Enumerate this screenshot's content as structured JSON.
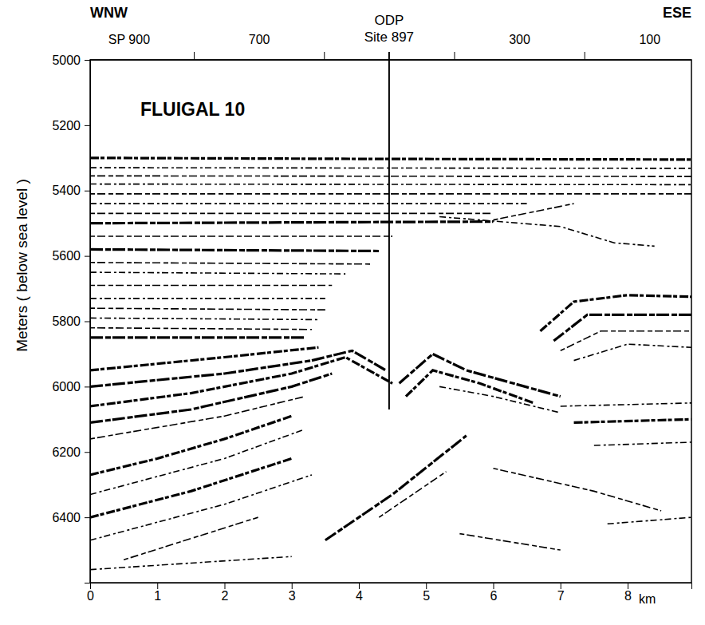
{
  "chart_data": {
    "type": "seismic_section",
    "title": "FLUIGAL 10",
    "direction_labels": [
      "WNW",
      "ESE"
    ],
    "ylabel": "Meters ( below sea level )",
    "xlabel": "km",
    "xlim": [
      0,
      8.95
    ],
    "xticks": [
      0,
      1,
      2,
      3,
      4,
      5,
      6,
      7,
      8
    ],
    "ylim": [
      5000,
      6600
    ],
    "yticks": [
      5000,
      5200,
      5400,
      5600,
      5800,
      6000,
      6200,
      6400
    ],
    "sp_lim": [
      960,
      36
    ],
    "sp_ticks": [
      800,
      600,
      400,
      200
    ],
    "sp_tick_labels": [
      {
        "value": 900,
        "label": "SP 900"
      },
      700,
      300,
      100
    ],
    "site": {
      "label": [
        "ODP",
        "Site 897"
      ],
      "x": 4.45,
      "depth": 6070
    },
    "reflectors": [
      {
        "line_style": "bold",
        "x": [
          0,
          4,
          8.95
        ],
        "y": [
          5300,
          5303,
          5305
        ]
      },
      {
        "line_style": "thin",
        "x": [
          0,
          8.95
        ],
        "y": [
          5330,
          5332
        ]
      },
      {
        "line_style": "thin",
        "x": [
          0,
          8.95
        ],
        "y": [
          5355,
          5357
        ]
      },
      {
        "line_style": "thin",
        "x": [
          0,
          8.95
        ],
        "y": [
          5380,
          5382
        ]
      },
      {
        "line_style": "thin",
        "x": [
          0,
          8.95
        ],
        "y": [
          5410,
          5410
        ]
      },
      {
        "line_style": "thin",
        "x": [
          0,
          6.5
        ],
        "y": [
          5440,
          5440
        ]
      },
      {
        "line_style": "thin",
        "x": [
          0,
          6
        ],
        "y": [
          5470,
          5470
        ]
      },
      {
        "line_style": "bold",
        "x": [
          0,
          6
        ],
        "y": [
          5500,
          5495
        ]
      },
      {
        "line_style": "thin",
        "x": [
          6,
          7.2
        ],
        "y": [
          5490,
          5440
        ]
      },
      {
        "line_style": "thin",
        "x": [
          5.2,
          7,
          7.8,
          8.4
        ],
        "y": [
          5480,
          5510,
          5560,
          5570
        ]
      },
      {
        "line_style": "thin",
        "x": [
          0,
          4.5
        ],
        "y": [
          5540,
          5540
        ]
      },
      {
        "line_style": "bold",
        "x": [
          0,
          4.3
        ],
        "y": [
          5580,
          5585
        ]
      },
      {
        "line_style": "thin",
        "x": [
          0,
          4.2
        ],
        "y": [
          5620,
          5625
        ]
      },
      {
        "line_style": "thin",
        "x": [
          0,
          3.8
        ],
        "y": [
          5650,
          5655
        ]
      },
      {
        "line_style": "thin",
        "x": [
          0,
          3.6
        ],
        "y": [
          5690,
          5690
        ]
      },
      {
        "line_style": "thin",
        "x": [
          0,
          3.5
        ],
        "y": [
          5730,
          5730
        ]
      },
      {
        "line_style": "thin",
        "x": [
          0,
          3.5
        ],
        "y": [
          5760,
          5765
        ]
      },
      {
        "line_style": "thin",
        "x": [
          0,
          3.4
        ],
        "y": [
          5790,
          5795
        ]
      },
      {
        "line_style": "thin",
        "x": [
          0,
          3.3
        ],
        "y": [
          5820,
          5825
        ]
      },
      {
        "line_style": "bold",
        "x": [
          0,
          3.2
        ],
        "y": [
          5850,
          5850
        ]
      },
      {
        "line_style": "bold",
        "x": [
          6.7,
          7.2,
          8,
          8.95
        ],
        "y": [
          5830,
          5740,
          5720,
          5725
        ]
      },
      {
        "line_style": "bold",
        "x": [
          6.9,
          7.4,
          8.95
        ],
        "y": [
          5860,
          5780,
          5780
        ]
      },
      {
        "line_style": "thin",
        "x": [
          7,
          7.6,
          8.95
        ],
        "y": [
          5890,
          5830,
          5830
        ]
      },
      {
        "line_style": "thin",
        "x": [
          7.2,
          8,
          8.95
        ],
        "y": [
          5920,
          5870,
          5880
        ]
      },
      {
        "line_style": "bold",
        "x": [
          0,
          2,
          3.4
        ],
        "y": [
          5950,
          5910,
          5880
        ]
      },
      {
        "line_style": "bold",
        "x": [
          0,
          2,
          3.3,
          3.9,
          4.4
        ],
        "y": [
          6000,
          5960,
          5920,
          5890,
          5950
        ]
      },
      {
        "line_style": "bold",
        "x": [
          0,
          1.5,
          3,
          3.8,
          4.5
        ],
        "y": [
          6060,
          6020,
          5960,
          5910,
          5990
        ]
      },
      {
        "line_style": "bold",
        "x": [
          0,
          1.5,
          3,
          3.6
        ],
        "y": [
          6110,
          6070,
          6000,
          5960
        ]
      },
      {
        "line_style": "thin",
        "x": [
          0,
          2,
          3.2
        ],
        "y": [
          6160,
          6090,
          6030
        ]
      },
      {
        "line_style": "bold",
        "x": [
          4.6,
          5.1,
          5.6,
          6.3,
          7
        ],
        "y": [
          5990,
          5900,
          5950,
          5990,
          6030
        ]
      },
      {
        "line_style": "bold",
        "x": [
          4.7,
          5.1,
          5.8,
          6.6
        ],
        "y": [
          6030,
          5950,
          5990,
          6050
        ]
      },
      {
        "line_style": "thin",
        "x": [
          5.2,
          6,
          7
        ],
        "y": [
          6000,
          6030,
          6080
        ]
      },
      {
        "line_style": "bold",
        "x": [
          0,
          1,
          2,
          3
        ],
        "y": [
          6270,
          6220,
          6160,
          6090
        ]
      },
      {
        "line_style": "thin",
        "x": [
          0,
          2,
          3.2
        ],
        "y": [
          6330,
          6220,
          6130
        ]
      },
      {
        "line_style": "bold",
        "x": [
          0,
          1.5,
          3
        ],
        "y": [
          6400,
          6320,
          6220
        ]
      },
      {
        "line_style": "thin",
        "x": [
          0,
          2,
          3.3
        ],
        "y": [
          6470,
          6360,
          6270
        ]
      },
      {
        "line_style": "thin",
        "x": [
          0.5,
          2.5
        ],
        "y": [
          6530,
          6400
        ]
      },
      {
        "line_style": "bold",
        "x": [
          3.5,
          4.5,
          5.6
        ],
        "y": [
          6470,
          6330,
          6150
        ]
      },
      {
        "line_style": "thin",
        "x": [
          4.3,
          5.3
        ],
        "y": [
          6400,
          6260
        ]
      },
      {
        "line_style": "thin",
        "x": [
          7,
          8.95
        ],
        "y": [
          6060,
          6050
        ]
      },
      {
        "line_style": "bold",
        "x": [
          7.2,
          8.95
        ],
        "y": [
          6110,
          6100
        ]
      },
      {
        "line_style": "thin",
        "x": [
          7.5,
          8.95
        ],
        "y": [
          6180,
          6170
        ]
      },
      {
        "line_style": "thin",
        "x": [
          6,
          7.5,
          8.5
        ],
        "y": [
          6250,
          6320,
          6380
        ]
      },
      {
        "line_style": "thin",
        "x": [
          7.7,
          8.95
        ],
        "y": [
          6420,
          6400
        ]
      },
      {
        "line_style": "thin",
        "x": [
          5.5,
          7
        ],
        "y": [
          6450,
          6500
        ]
      },
      {
        "line_style": "thin",
        "x": [
          0,
          3
        ],
        "y": [
          6560,
          6520
        ]
      }
    ]
  }
}
